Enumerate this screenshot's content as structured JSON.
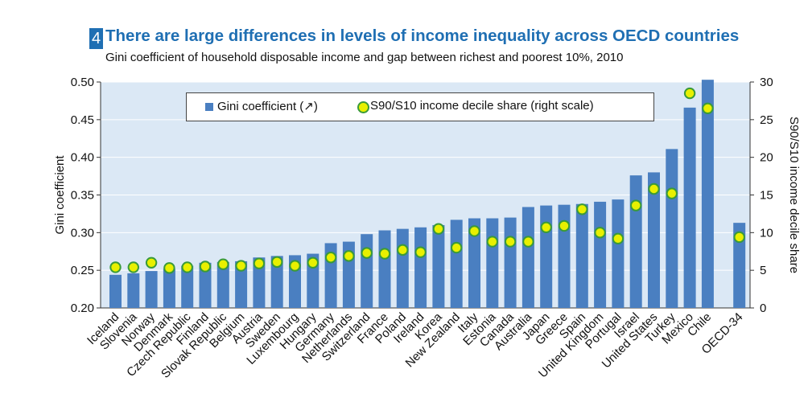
{
  "header": {
    "badge": "4",
    "title": "There are large differences in levels of income inequality across OECD countries",
    "subtitle": "Gini coefficient of household disposable income and gap between richest and poorest 10%, 2010"
  },
  "legend": {
    "bar_label": "Gini coefficient (↗)",
    "dot_label": "S90/S10 income decile share (right scale)"
  },
  "colors": {
    "bar": "#4a7fc1",
    "dot_fill": "#e8f000",
    "dot_stroke": "#3a9a3a",
    "plot_bg": "#dbe8f5",
    "gridline": "#ffffff"
  },
  "chart_data": {
    "type": "bar",
    "title": "There are large differences in levels of income inequality across OECD countries",
    "ylabel": "Gini coefficient",
    "y2label": "S90/S10 income decile share",
    "ylim": [
      0.2,
      0.5
    ],
    "y2lim": [
      0,
      30
    ],
    "yticks": [
      "0.20",
      "0.25",
      "0.30",
      "0.35",
      "0.40",
      "0.45",
      "0.50"
    ],
    "y2ticks": [
      "0",
      "5",
      "10",
      "15",
      "20",
      "25",
      "30"
    ],
    "legend_position": "top",
    "grid": true,
    "categories": [
      "Iceland",
      "Slovenia",
      "Norway",
      "Denmark",
      "Czech Republic",
      "Finland",
      "Slovak Republic",
      "Belgium",
      "Austria",
      "Sweden",
      "Luxembourg",
      "Hungary",
      "Germany",
      "Netherlands",
      "Switzerland",
      "France",
      "Poland",
      "Ireland",
      "Korea",
      "New Zealand",
      "Italy",
      "Estonia",
      "Canada",
      "Australia",
      "Japan",
      "Greece",
      "Spain",
      "United Kingdom",
      "Portugal",
      "Israel",
      "United States",
      "Turkey",
      "Mexico",
      "Chile",
      "OECD-34"
    ],
    "series": [
      {
        "name": "Gini coefficient (↗)",
        "type": "bar",
        "axis": "left",
        "values": [
          0.244,
          0.246,
          0.249,
          0.252,
          0.256,
          0.26,
          0.261,
          0.262,
          0.267,
          0.269,
          0.27,
          0.272,
          0.286,
          0.288,
          0.298,
          0.303,
          0.305,
          0.307,
          0.31,
          0.317,
          0.319,
          0.319,
          0.32,
          0.334,
          0.336,
          0.337,
          0.338,
          0.341,
          0.344,
          0.376,
          0.38,
          0.411,
          0.466,
          0.503,
          0.313
        ]
      },
      {
        "name": "S90/S10 income decile share (right scale)",
        "type": "scatter",
        "axis": "right",
        "values": [
          5.4,
          5.4,
          6.0,
          5.3,
          5.4,
          5.5,
          5.8,
          5.6,
          5.9,
          6.1,
          5.6,
          6.0,
          6.7,
          6.9,
          7.3,
          7.2,
          7.7,
          7.4,
          10.5,
          8.0,
          10.2,
          8.8,
          8.8,
          8.8,
          10.7,
          10.9,
          13.1,
          10.0,
          9.2,
          13.6,
          15.8,
          15.2,
          28.5,
          26.5,
          9.4
        ]
      }
    ]
  }
}
